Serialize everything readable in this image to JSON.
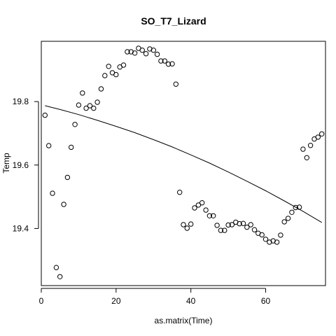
{
  "chart_data": {
    "type": "scatter",
    "title": "SO_T7_Lizard",
    "xlabel": "as.matrix(Time)",
    "ylabel": "Temp",
    "xlim": [
      0,
      76
    ],
    "ylim": [
      19.22,
      19.99
    ],
    "x_ticks": [
      0,
      20,
      40,
      60
    ],
    "y_ticks": [
      19.4,
      19.6,
      19.8
    ],
    "x_tick_labels": [
      "0",
      "20",
      "40",
      "60"
    ],
    "y_tick_labels": [
      "19.4",
      "19.6",
      "19.8"
    ],
    "grid": false,
    "legend": "none",
    "series": [
      {
        "kind": "points",
        "x": [
          1,
          2,
          3,
          4,
          5,
          6,
          7,
          8,
          9,
          10,
          11,
          12,
          13,
          14,
          15,
          16,
          17,
          18,
          19,
          20,
          21,
          22,
          23,
          24,
          25,
          26,
          27,
          28,
          29,
          30,
          31,
          32,
          33,
          34,
          35,
          36,
          37,
          38,
          39,
          40,
          41,
          42,
          43,
          44,
          45,
          46,
          47,
          48,
          49,
          50,
          51,
          52,
          53,
          54,
          55,
          56,
          57,
          58,
          59,
          60,
          61,
          62,
          63,
          64,
          65,
          66,
          67,
          68,
          69,
          70,
          71,
          72,
          73,
          74,
          75
        ],
        "y": [
          19.757,
          19.661,
          19.511,
          19.277,
          19.248,
          19.476,
          19.561,
          19.656,
          19.728,
          19.789,
          19.827,
          19.779,
          19.787,
          19.779,
          19.798,
          19.84,
          19.882,
          19.911,
          19.891,
          19.885,
          19.909,
          19.915,
          19.957,
          19.957,
          19.953,
          19.968,
          19.962,
          19.951,
          19.966,
          19.962,
          19.949,
          19.928,
          19.928,
          19.918,
          19.919,
          19.855,
          19.514,
          19.412,
          19.401,
          19.414,
          19.465,
          19.474,
          19.481,
          19.458,
          19.44,
          19.44,
          19.41,
          19.394,
          19.394,
          19.411,
          19.412,
          19.42,
          19.415,
          19.416,
          19.404,
          19.412,
          19.396,
          19.385,
          19.38,
          19.366,
          19.357,
          19.361,
          19.357,
          19.379,
          19.421,
          19.432,
          19.451,
          19.466,
          19.467,
          19.65,
          19.623,
          19.662,
          19.682,
          19.688,
          19.698
        ]
      },
      {
        "kind": "fitted-line",
        "x": [
          1,
          5,
          10,
          15,
          20,
          25,
          30,
          35,
          40,
          45,
          50,
          55,
          60,
          65,
          70,
          75
        ],
        "y": [
          19.787,
          19.775,
          19.759,
          19.741,
          19.722,
          19.702,
          19.68,
          19.657,
          19.632,
          19.606,
          19.578,
          19.549,
          19.519,
          19.487,
          19.454,
          19.419
        ]
      }
    ]
  }
}
